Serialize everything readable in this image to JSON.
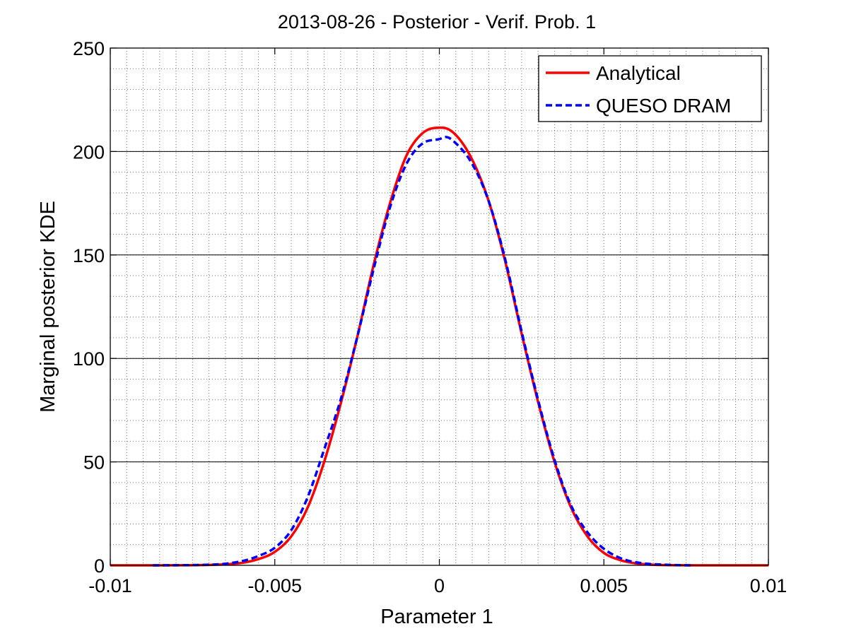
{
  "chart_data": {
    "type": "line",
    "title": "2013-08-26 - Posterior - Verif. Prob. 1",
    "xlabel": "Parameter 1",
    "ylabel": "Marginal posterior KDE",
    "xlim": [
      -0.01,
      0.01
    ],
    "ylim": [
      0,
      250
    ],
    "xticks": [
      -0.01,
      -0.005,
      0,
      0.005,
      0.01
    ],
    "xtick_labels": [
      "-0.01",
      "-0.005",
      "0",
      "0.005",
      "0.01"
    ],
    "yticks": [
      0,
      50,
      100,
      150,
      200,
      250
    ],
    "ytick_labels": [
      "0",
      "50",
      "100",
      "150",
      "200",
      "250"
    ],
    "grid": "major and minor",
    "legend_position": "top-right",
    "series": [
      {
        "name": "Analytical",
        "color": "#ff0000",
        "style": "solid",
        "x": [
          -0.01,
          -0.0085,
          -0.007,
          -0.006,
          -0.0055,
          -0.005,
          -0.0045,
          -0.004,
          -0.0035,
          -0.003,
          -0.0025,
          -0.002,
          -0.0015,
          -0.001,
          -0.0005,
          0.0,
          0.0001,
          0.0005,
          0.001,
          0.0015,
          0.002,
          0.0025,
          0.003,
          0.0035,
          0.004,
          0.0045,
          0.005,
          0.0055,
          0.006,
          0.007,
          0.0085,
          0.01
        ],
        "y": [
          0,
          0,
          0.2,
          1.2,
          3,
          6.5,
          14,
          28,
          50,
          78,
          110,
          145,
          175,
          198,
          209,
          211.5,
          211.5,
          208,
          196,
          176,
          147,
          112,
          79,
          50,
          28,
          14,
          6,
          2.5,
          0.9,
          0.1,
          0,
          0
        ]
      },
      {
        "name": "QUESO DRAM",
        "color": "#0000ff",
        "style": "dashed",
        "x": [
          -0.0087,
          -0.007,
          -0.006,
          -0.0055,
          -0.005,
          -0.0045,
          -0.004,
          -0.0035,
          -0.003,
          -0.0025,
          -0.002,
          -0.0015,
          -0.001,
          -0.0005,
          0.0,
          0.0002,
          0.0005,
          0.001,
          0.0015,
          0.002,
          0.0025,
          0.003,
          0.0035,
          0.004,
          0.0045,
          0.005,
          0.0055,
          0.006,
          0.007,
          0.0077
        ],
        "y": [
          0,
          0.3,
          2,
          4.5,
          8.5,
          17,
          33,
          56,
          80,
          110,
          143,
          173,
          194,
          204,
          206,
          207,
          204,
          194,
          176,
          148,
          113,
          80,
          51,
          29,
          16,
          8,
          3.5,
          1.4,
          0.2,
          0
        ]
      }
    ]
  }
}
